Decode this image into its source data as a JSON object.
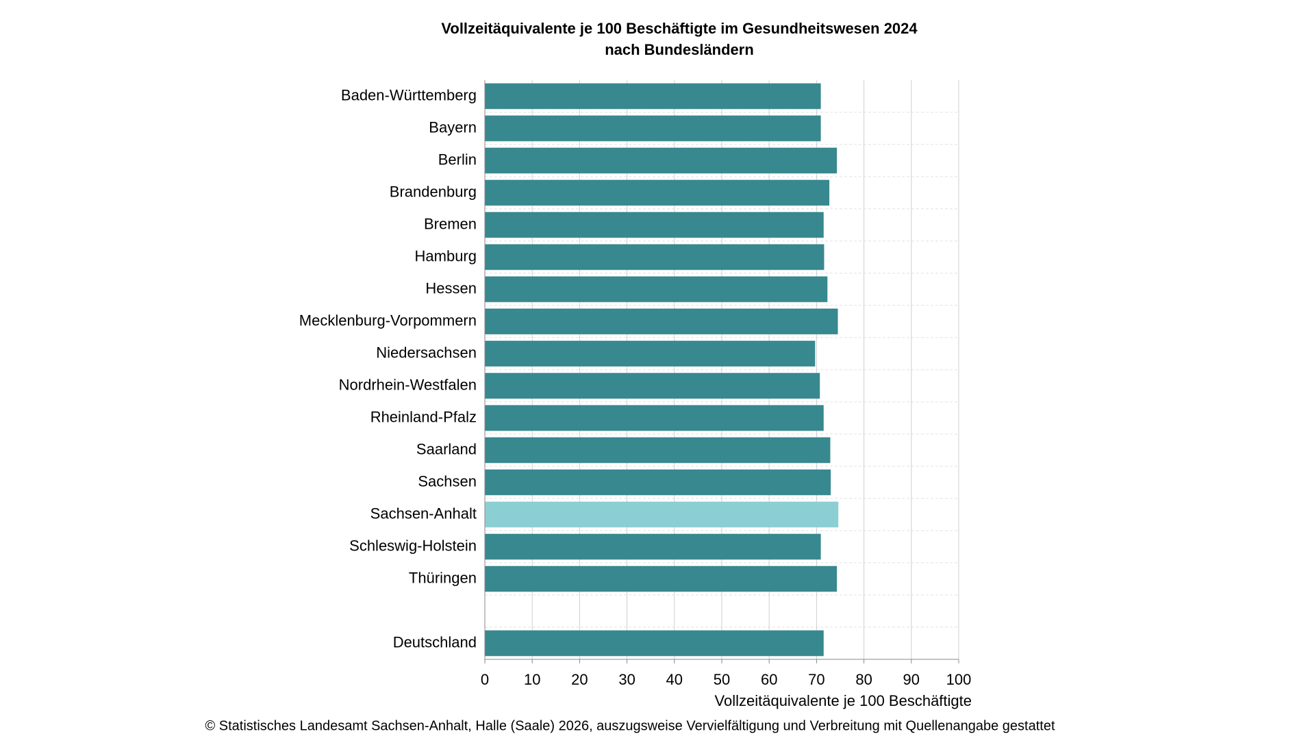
{
  "chart_data": {
    "type": "barh",
    "title": "Vollzeitäquivalente je 100 Beschäftigte im Gesundheitswesen 2024",
    "subtitle": "nach Bundesländern",
    "categories": [
      "Baden-Württemberg",
      "Bayern",
      "Berlin",
      "Brandenburg",
      "Bremen",
      "Hamburg",
      "Hessen",
      "Mecklenburg-Vorpommern",
      "Niedersachsen",
      "Nordrhein-Westfalen",
      "Rheinland-Pfalz",
      "Saarland",
      "Sachsen",
      "Sachsen-Anhalt",
      "Schleswig-Holstein",
      "Thüringen",
      null,
      "Deutschland"
    ],
    "values": [
      70.9,
      70.9,
      74.3,
      72.7,
      71.5,
      71.6,
      72.3,
      74.5,
      69.7,
      70.7,
      71.5,
      72.9,
      73.0,
      74.6,
      70.9,
      74.3,
      null,
      71.5
    ],
    "colors": [
      "#38888f",
      "#38888f",
      "#38888f",
      "#38888f",
      "#38888f",
      "#38888f",
      "#38888f",
      "#38888f",
      "#38888f",
      "#38888f",
      "#38888f",
      "#38888f",
      "#38888f",
      "#8ccfd3",
      "#38888f",
      "#38888f",
      "#38888f",
      "#38888f"
    ],
    "xlim": [
      0,
      100
    ],
    "xticks": [
      0,
      10,
      20,
      30,
      40,
      50,
      60,
      70,
      80,
      90,
      100
    ],
    "xlabel": "Vollzeitäquivalente je 100 Beschäftigte",
    "grid": true
  },
  "footer": "© Statistisches Landesamt Sachsen-Anhalt, Halle (Saale) 2026, auszugsweise Vervielfältigung und Verbreitung mit Quellenangabe gestattet"
}
